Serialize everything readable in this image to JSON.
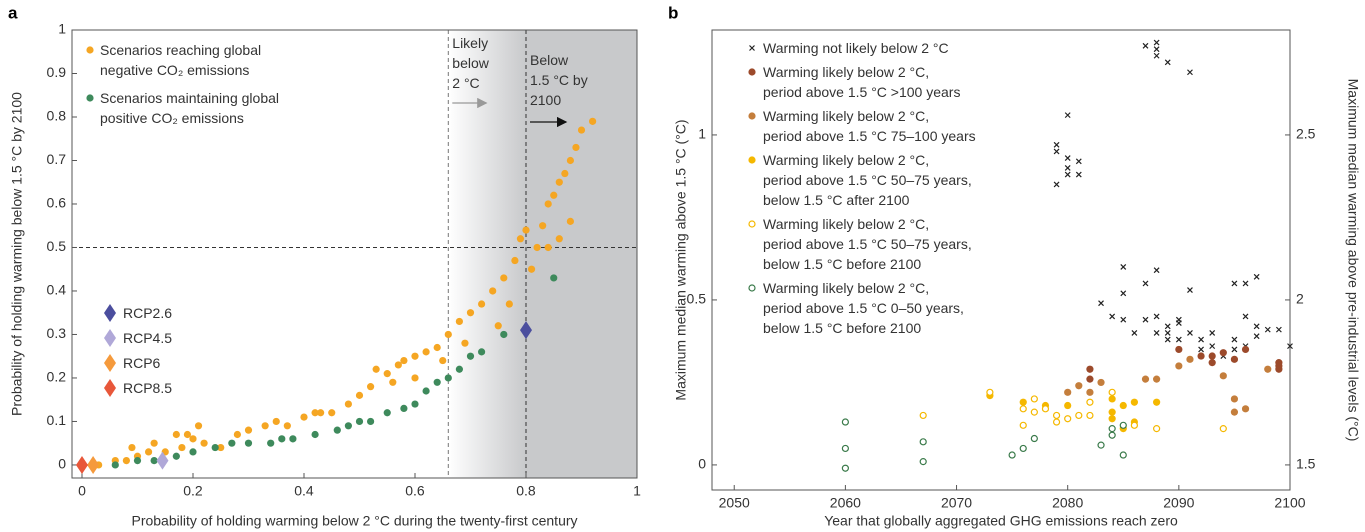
{
  "chart_data": [
    {
      "panel": "a",
      "type": "scatter",
      "xlabel": "Probability of holding warming below 2 °C during the twenty-first century",
      "ylabel": "Probability of holding warming below 1.5 °C by 2100",
      "xlim": [
        -0.018,
        1
      ],
      "ylim": [
        -0.03,
        1
      ],
      "xticks": [
        0,
        0.2,
        0.4,
        0.6,
        0.8,
        1
      ],
      "yticks": [
        0,
        0.1,
        0.2,
        0.3,
        0.4,
        0.5,
        0.6,
        0.7,
        0.8,
        0.9,
        1
      ],
      "reference_x": [
        0.66,
        0.8
      ],
      "reference_y": 0.5,
      "annotations": [
        "Likely\nbelow\n2 °C",
        "Below\n1.5 °C by\n2100"
      ],
      "series": [
        {
          "name": "Scenarios reaching global\nnegative CO₂ emissions",
          "color": "#f5a623",
          "marker": "circle",
          "x": [
            0.03,
            0.06,
            0.08,
            0.1,
            0.12,
            0.15,
            0.18,
            0.2,
            0.21,
            0.17,
            0.19,
            0.22,
            0.25,
            0.28,
            0.3,
            0.33,
            0.37,
            0.4,
            0.43,
            0.45,
            0.48,
            0.5,
            0.52,
            0.53,
            0.55,
            0.57,
            0.58,
            0.6,
            0.62,
            0.64,
            0.66,
            0.68,
            0.7,
            0.72,
            0.74,
            0.76,
            0.78,
            0.79,
            0.8,
            0.82,
            0.83,
            0.84,
            0.85,
            0.86,
            0.87,
            0.88,
            0.89,
            0.9,
            0.92,
            0.81,
            0.77,
            0.75,
            0.69,
            0.65,
            0.6,
            0.56,
            0.42,
            0.35,
            0.13,
            0.09,
            0.88,
            0.86,
            0.84
          ],
          "y": [
            0,
            0.01,
            0.01,
            0.02,
            0.03,
            0.03,
            0.04,
            0.06,
            0.09,
            0.07,
            0.07,
            0.05,
            0.04,
            0.07,
            0.08,
            0.09,
            0.09,
            0.11,
            0.12,
            0.12,
            0.14,
            0.16,
            0.18,
            0.22,
            0.21,
            0.23,
            0.24,
            0.25,
            0.26,
            0.27,
            0.3,
            0.33,
            0.35,
            0.37,
            0.4,
            0.43,
            0.47,
            0.52,
            0.54,
            0.5,
            0.55,
            0.6,
            0.62,
            0.65,
            0.67,
            0.7,
            0.73,
            0.77,
            0.79,
            0.45,
            0.37,
            0.32,
            0.28,
            0.24,
            0.2,
            0.19,
            0.12,
            0.1,
            0.05,
            0.04,
            0.56,
            0.52,
            0.5
          ]
        },
        {
          "name": "Scenarios maintaining global\npositive CO₂ emissions",
          "color": "#3e8a5c",
          "marker": "circle",
          "x": [
            0.06,
            0.1,
            0.13,
            0.17,
            0.2,
            0.24,
            0.27,
            0.3,
            0.34,
            0.38,
            0.42,
            0.46,
            0.48,
            0.5,
            0.55,
            0.58,
            0.6,
            0.62,
            0.64,
            0.66,
            0.68,
            0.7,
            0.72,
            0.76,
            0.85,
            0.52,
            0.36
          ],
          "y": [
            0,
            0.01,
            0.01,
            0.02,
            0.03,
            0.04,
            0.05,
            0.05,
            0.05,
            0.06,
            0.07,
            0.08,
            0.09,
            0.1,
            0.12,
            0.13,
            0.14,
            0.17,
            0.19,
            0.2,
            0.22,
            0.25,
            0.26,
            0.3,
            0.43,
            0.1,
            0.06
          ]
        },
        {
          "name": "RCP2.6",
          "color": "#4b4e9e",
          "marker": "diamond",
          "x": [
            0.8
          ],
          "y": [
            0.31
          ]
        },
        {
          "name": "RCP4.5",
          "color": "#b0a8d8",
          "marker": "diamond",
          "x": [
            0.145
          ],
          "y": [
            0.01
          ]
        },
        {
          "name": "RCP6",
          "color": "#f59a3c",
          "marker": "diamond",
          "x": [
            0.02
          ],
          "y": [
            0
          ]
        },
        {
          "name": "RCP8.5",
          "color": "#e8573a",
          "marker": "diamond",
          "x": [
            0
          ],
          "y": [
            0
          ]
        }
      ]
    },
    {
      "panel": "b",
      "type": "scatter",
      "xlabel": "Year that globally aggregated GHG emissions reach zero",
      "ylabel": "Maximum median warming above 1.5 °C (°C)",
      "y2label": "Maximum median warming above pre-industrial levels (°C)",
      "xlim": [
        2048,
        2100
      ],
      "ylim": [
        -0.076,
        1.318
      ],
      "y2lim": [
        1.424,
        2.818
      ],
      "xticks": [
        2050,
        2060,
        2070,
        2080,
        2090,
        2100
      ],
      "yticks": [
        0,
        0.5,
        1
      ],
      "y2ticks": [
        1.5,
        2,
        2.5
      ],
      "series": [
        {
          "name": "Warming not likely below 2 °C",
          "color": "#222222",
          "marker": "x",
          "x": [
            2080,
            2079,
            2079,
            2080,
            2080,
            2080,
            2081,
            2081,
            2079,
            2088,
            2088,
            2088,
            2087,
            2089,
            2091,
            2085,
            2085,
            2083,
            2084,
            2085,
            2086,
            2087,
            2087,
            2088,
            2088,
            2088,
            2089,
            2089,
            2090,
            2090,
            2091,
            2091,
            2092,
            2092,
            2093,
            2093,
            2094,
            2095,
            2095,
            2095,
            2096,
            2096,
            2096,
            2097,
            2097,
            2097,
            2098,
            2099,
            2100,
            2089,
            2090
          ],
          "y": [
            1.06,
            0.97,
            0.95,
            0.93,
            0.9,
            0.88,
            0.92,
            0.88,
            0.85,
            1.28,
            1.26,
            1.24,
            1.27,
            1.22,
            1.19,
            0.6,
            0.52,
            0.49,
            0.45,
            0.44,
            0.4,
            0.55,
            0.44,
            0.59,
            0.45,
            0.4,
            0.38,
            0.42,
            0.44,
            0.38,
            0.53,
            0.4,
            0.38,
            0.35,
            0.4,
            0.36,
            0.33,
            0.55,
            0.38,
            0.35,
            0.55,
            0.45,
            0.36,
            0.57,
            0.42,
            0.39,
            0.41,
            0.41,
            0.36,
            0.4,
            0.43
          ]
        },
        {
          "name": "Warming likely below 2 °C,\nperiod above 1.5 °C >100 years",
          "color": "#9c4a2b",
          "marker": "circle",
          "x": [
            2082,
            2082,
            2090,
            2092,
            2093,
            2094,
            2095,
            2096,
            2099,
            2099,
            2099,
            2093
          ],
          "y": [
            0.29,
            0.26,
            0.35,
            0.33,
            0.31,
            0.34,
            0.32,
            0.35,
            0.31,
            0.3,
            0.29,
            0.33
          ]
        },
        {
          "name": "Warming likely below 2 °C,\nperiod above 1.5 °C 75–100 years",
          "color": "#c47e3c",
          "marker": "circle",
          "x": [
            2081,
            2082,
            2083,
            2087,
            2088,
            2090,
            2094,
            2095,
            2096,
            2095,
            2098,
            2091,
            2080
          ],
          "y": [
            0.24,
            0.22,
            0.25,
            0.26,
            0.26,
            0.3,
            0.27,
            0.2,
            0.17,
            0.16,
            0.29,
            0.32,
            0.22
          ]
        },
        {
          "name": "Warming likely below 2 °C,\nperiod above 1.5 °C 50–75 years,\nbelow 1.5 °C after 2100",
          "color": "#f5b800",
          "marker": "circle",
          "x": [
            2073,
            2076,
            2078,
            2080,
            2084,
            2085,
            2086,
            2088,
            2084,
            2084,
            2086,
            2085
          ],
          "y": [
            0.21,
            0.19,
            0.18,
            0.18,
            0.2,
            0.18,
            0.19,
            0.19,
            0.16,
            0.14,
            0.13,
            0.11
          ]
        },
        {
          "name": "Warming likely below 2 °C,\nperiod above 1.5 °C 50–75 years,\nbelow 1.5 °C before 2100",
          "color": "#f5b800",
          "marker": "open-circle",
          "x": [
            2067,
            2073,
            2076,
            2077,
            2078,
            2079,
            2080,
            2081,
            2079,
            2076,
            2082,
            2084,
            2086,
            2088,
            2094,
            2082,
            2077
          ],
          "y": [
            0.15,
            0.22,
            0.17,
            0.16,
            0.17,
            0.15,
            0.14,
            0.15,
            0.13,
            0.12,
            0.19,
            0.22,
            0.12,
            0.11,
            0.11,
            0.15,
            0.2
          ]
        },
        {
          "name": "Warming likely below 2 °C,\nperiod above 1.5 °C 0–50 years,\nbelow 1.5 °C before 2100",
          "color": "#3a7a4a",
          "marker": "open-circle",
          "x": [
            2060,
            2060,
            2060,
            2067,
            2067,
            2075,
            2076,
            2077,
            2083,
            2084,
            2085,
            2085,
            2084
          ],
          "y": [
            0.13,
            0.05,
            -0.01,
            0.07,
            0.01,
            0.03,
            0.05,
            0.08,
            0.06,
            0.09,
            0.12,
            0.03,
            0.11
          ]
        }
      ]
    }
  ]
}
